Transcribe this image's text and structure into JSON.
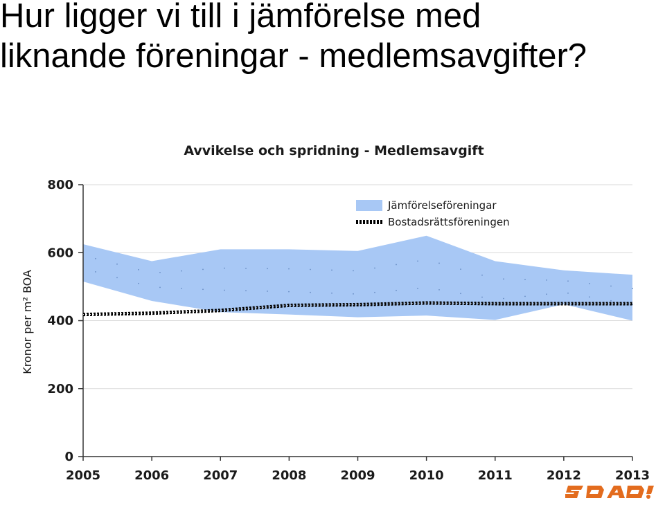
{
  "slide": {
    "title_line1": "Hur ligger vi till i jämförelse med",
    "title_line2": "liknande föreningar - medlemsavgifter?",
    "logo_text": "SBAB!"
  },
  "chart_data": {
    "type": "area",
    "title": "Avvikelse och spridning - Medlemsavgift",
    "xlabel": "",
    "ylabel": "Kronor per m² BOA",
    "categories": [
      "2005",
      "2006",
      "2007",
      "2008",
      "2009",
      "2010",
      "2011",
      "2012",
      "2013"
    ],
    "ylim": [
      0,
      800
    ],
    "yticks": [
      "0",
      "200",
      "400",
      "600",
      "800"
    ],
    "grid": true,
    "legend_position": "top-right",
    "series": [
      {
        "name": "Jämförelseföreningar",
        "kind": "band",
        "upper": [
          625,
          575,
          610,
          610,
          605,
          650,
          575,
          548,
          535
        ],
        "lower": [
          515,
          458,
          425,
          418,
          410,
          415,
          402,
          448,
          400
        ],
        "color": "#a8c8f5"
      },
      {
        "name": "Bostadsrättsföreningen",
        "kind": "line",
        "values": [
          418,
          422,
          430,
          445,
          447,
          452,
          450,
          450,
          450
        ],
        "color": "#000000"
      }
    ]
  },
  "colors": {
    "logo": "#e36c1e",
    "band": "#a8c8f5",
    "grid": "#d9d9d9"
  }
}
